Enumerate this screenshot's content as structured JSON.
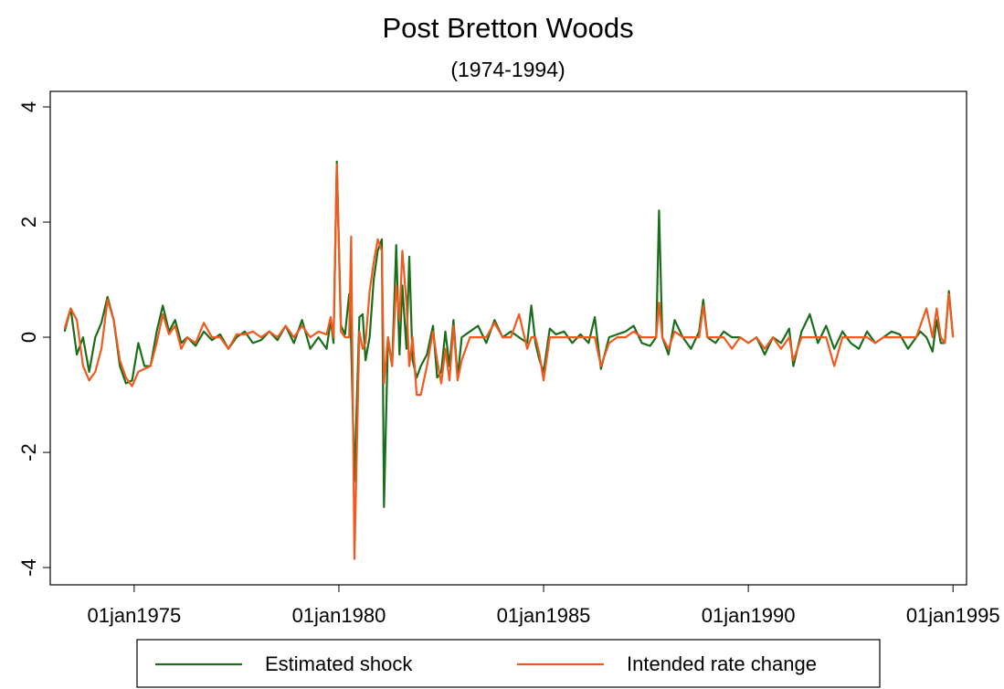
{
  "chart_data": {
    "type": "line",
    "title": "Post Bretton Woods",
    "subtitle": "(1974-1994)",
    "x": [
      1973.3,
      1973.45,
      1973.6,
      1973.75,
      1973.9,
      1974.05,
      1974.2,
      1974.35,
      1974.5,
      1974.65,
      1974.8,
      1974.95,
      1975.1,
      1975.25,
      1975.4,
      1975.55,
      1975.7,
      1975.85,
      1976.0,
      1976.15,
      1976.3,
      1976.5,
      1976.7,
      1976.9,
      1977.1,
      1977.3,
      1977.5,
      1977.7,
      1977.9,
      1978.1,
      1978.3,
      1978.5,
      1978.7,
      1978.9,
      1979.1,
      1979.3,
      1979.5,
      1979.7,
      1979.8,
      1979.87,
      1979.95,
      1980.05,
      1980.15,
      1980.25,
      1980.3,
      1980.38,
      1980.5,
      1980.58,
      1980.65,
      1980.75,
      1980.85,
      1980.95,
      1981.05,
      1981.1,
      1981.2,
      1981.3,
      1981.4,
      1981.48,
      1981.55,
      1981.65,
      1981.72,
      1981.8,
      1981.9,
      1982.0,
      1982.15,
      1982.3,
      1982.4,
      1982.5,
      1982.6,
      1982.7,
      1982.8,
      1982.9,
      1983.0,
      1983.2,
      1983.4,
      1983.6,
      1983.8,
      1984.0,
      1984.2,
      1984.4,
      1984.6,
      1984.7,
      1984.8,
      1984.9,
      1985.0,
      1985.15,
      1985.3,
      1985.5,
      1985.7,
      1985.9,
      1986.1,
      1986.25,
      1986.4,
      1986.6,
      1986.8,
      1987.0,
      1987.2,
      1987.4,
      1987.6,
      1987.75,
      1987.82,
      1987.9,
      1988.05,
      1988.2,
      1988.4,
      1988.6,
      1988.8,
      1988.9,
      1989.0,
      1989.2,
      1989.4,
      1989.6,
      1989.8,
      1990.0,
      1990.2,
      1990.4,
      1990.6,
      1990.8,
      1991.0,
      1991.1,
      1991.3,
      1991.5,
      1991.7,
      1991.9,
      1992.1,
      1992.3,
      1992.5,
      1992.7,
      1992.9,
      1993.1,
      1993.3,
      1993.5,
      1993.7,
      1993.9,
      1994.1,
      1994.2,
      1994.35,
      1994.5,
      1994.6,
      1994.7,
      1994.8,
      1994.9,
      1995.0
    ],
    "series": [
      {
        "name": "Estimated shock",
        "color": "#1a6e1a",
        "values": [
          0.1,
          0.5,
          -0.3,
          0.0,
          -0.6,
          0.0,
          0.25,
          0.7,
          0.3,
          -0.5,
          -0.8,
          -0.75,
          -0.1,
          -0.5,
          -0.5,
          0.1,
          0.55,
          0.1,
          0.3,
          -0.1,
          0.0,
          -0.15,
          0.1,
          -0.05,
          0.05,
          -0.2,
          0.0,
          0.1,
          -0.1,
          -0.05,
          0.1,
          -0.05,
          0.2,
          -0.1,
          0.3,
          -0.2,
          0.0,
          -0.2,
          0.3,
          -0.1,
          3.05,
          0.2,
          0.05,
          0.75,
          -0.1,
          -2.5,
          0.35,
          0.4,
          -0.4,
          0.0,
          1.0,
          1.5,
          1.7,
          -2.95,
          0.0,
          -0.5,
          1.6,
          -0.3,
          0.9,
          -0.2,
          1.4,
          -0.4,
          -0.7,
          -0.5,
          -0.3,
          0.2,
          -0.7,
          -0.6,
          0.1,
          -0.5,
          0.3,
          -0.7,
          0.0,
          0.1,
          0.2,
          -0.1,
          0.3,
          0.0,
          0.1,
          0.0,
          -0.1,
          0.55,
          -0.1,
          -0.4,
          -0.6,
          0.15,
          0.05,
          0.1,
          -0.1,
          0.05,
          -0.1,
          0.35,
          -0.55,
          0.0,
          0.05,
          0.1,
          0.2,
          -0.1,
          -0.15,
          0.0,
          2.2,
          0.0,
          -0.3,
          0.3,
          0.0,
          -0.2,
          0.1,
          0.65,
          0.0,
          -0.1,
          0.1,
          0.0,
          0.0,
          -0.1,
          0.0,
          -0.3,
          0.0,
          -0.1,
          0.15,
          -0.5,
          0.1,
          0.4,
          -0.1,
          0.2,
          -0.2,
          0.1,
          -0.1,
          -0.2,
          0.1,
          -0.1,
          0.0,
          0.1,
          0.05,
          -0.2,
          0.0,
          0.1,
          0.0,
          -0.25,
          0.3,
          -0.1,
          -0.1,
          0.8,
          0.0
        ]
      },
      {
        "name": "Intended rate change",
        "color": "#f05a1e",
        "values": [
          0.15,
          0.5,
          0.3,
          -0.5,
          -0.75,
          -0.6,
          -0.2,
          0.65,
          0.3,
          -0.4,
          -0.7,
          -0.85,
          -0.6,
          -0.55,
          -0.5,
          -0.1,
          0.4,
          0.05,
          0.2,
          -0.2,
          0.0,
          -0.1,
          0.25,
          0.0,
          0.0,
          -0.2,
          0.05,
          0.05,
          0.1,
          0.0,
          0.1,
          0.0,
          0.2,
          0.0,
          0.2,
          0.0,
          0.1,
          0.05,
          0.35,
          0.0,
          3.0,
          0.1,
          0.0,
          0.0,
          1.75,
          -3.85,
          0.1,
          -0.2,
          -0.1,
          0.8,
          1.3,
          1.7,
          1.5,
          -0.8,
          0.0,
          -0.5,
          0.9,
          0.3,
          1.5,
          0.6,
          -0.5,
          0.0,
          -1.0,
          -1.0,
          -0.5,
          0.1,
          -0.4,
          -0.8,
          -0.2,
          -0.75,
          0.2,
          -0.75,
          -0.4,
          0.0,
          0.0,
          0.0,
          0.25,
          0.0,
          0.0,
          0.4,
          -0.2,
          0.0,
          0.0,
          -0.3,
          -0.75,
          0.0,
          0.0,
          0.0,
          0.0,
          0.0,
          0.0,
          0.0,
          -0.5,
          -0.1,
          0.0,
          0.0,
          0.1,
          0.0,
          0.0,
          0.0,
          0.6,
          0.0,
          -0.2,
          0.1,
          0.0,
          0.0,
          0.0,
          0.55,
          0.0,
          0.0,
          0.0,
          -0.2,
          0.0,
          -0.1,
          0.0,
          -0.2,
          0.0,
          -0.2,
          0.0,
          -0.4,
          0.0,
          0.0,
          0.0,
          0.0,
          -0.5,
          0.0,
          0.0,
          0.0,
          0.0,
          -0.1,
          0.0,
          0.0,
          0.0,
          0.0,
          0.0,
          0.2,
          0.5,
          0.0,
          0.5,
          0.0,
          -0.1,
          0.75,
          0.0
        ]
      }
    ],
    "xlim": [
      1972.95,
      1995.33
    ],
    "ylim": [
      -4.3,
      4.27
    ],
    "xticks": [
      {
        "value": 1975,
        "label": "01jan1975"
      },
      {
        "value": 1980,
        "label": "01jan1980"
      },
      {
        "value": 1985,
        "label": "01jan1985"
      },
      {
        "value": 1990,
        "label": "01jan1990"
      },
      {
        "value": 1995,
        "label": "01jan1995"
      }
    ],
    "yticks": [
      -4,
      -2,
      0,
      2,
      4
    ]
  }
}
